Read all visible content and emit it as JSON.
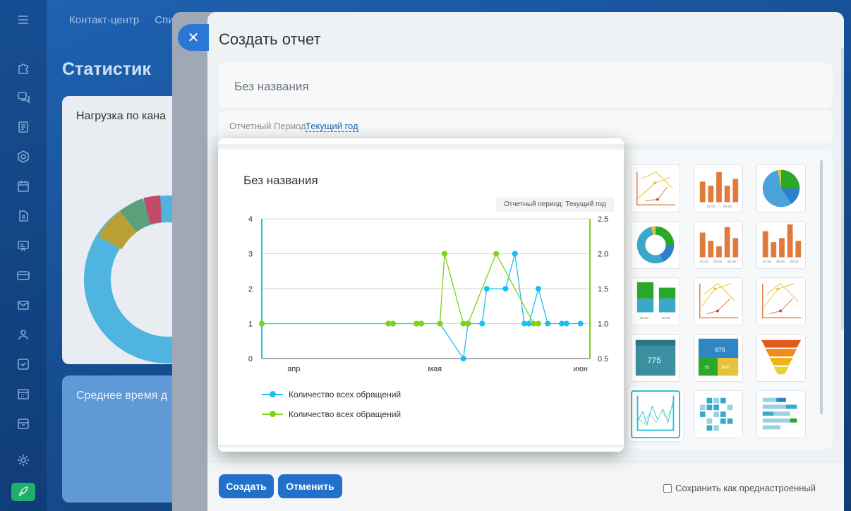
{
  "background": {
    "topnav": [
      "Контакт-центр",
      "Спи"
    ],
    "title": "Статистик",
    "card1_title": "Нагрузка по кана",
    "card2_title": "Среднее время д",
    "rail_icons": [
      "menu-icon",
      "puzzle-icon",
      "chat-icon",
      "document-icon",
      "hexagon-icon",
      "calendar-icon",
      "file-icon",
      "presentation-icon",
      "card-icon",
      "mail-icon",
      "users-icon",
      "checkbox-icon",
      "calendar-grid-icon",
      "archive-icon",
      "gear-icon",
      "rocket-icon"
    ]
  },
  "dialog": {
    "title": "Создать отчет",
    "name_value": "Без названия",
    "period_label": "Отчетный Период:",
    "period_value": "Текущий год",
    "create_label": "Создать",
    "cancel_label": "Отменить",
    "save_preset_label": "Сохранить как преднастроенный"
  },
  "gallery": {
    "thumbs": [
      {
        "kind": "line-multi"
      },
      {
        "kind": "bar",
        "labels": [
          "01.00",
          "00.00"
        ]
      },
      {
        "kind": "pie"
      },
      {
        "kind": "donut"
      },
      {
        "kind": "bar",
        "labels": [
          "01.00",
          "00.00",
          "00.00"
        ]
      },
      {
        "kind": "bar",
        "labels": [
          "01.00",
          "00.00",
          "00.00"
        ]
      },
      {
        "kind": "stacked-bar",
        "labels": [
          "01.00",
          "00.00"
        ]
      },
      {
        "kind": "line-multi"
      },
      {
        "kind": "line-multi"
      },
      {
        "kind": "number",
        "value": "775"
      },
      {
        "kind": "multi-number",
        "values": [
          "975",
          "75",
          "900"
        ]
      },
      {
        "kind": "funnel"
      },
      {
        "kind": "line-graph",
        "selected": true
      },
      {
        "kind": "heatmap"
      },
      {
        "kind": "bar-h"
      }
    ]
  },
  "preview": {
    "title": "Без названия",
    "period_badge": "Отчетный период: Текущий год",
    "chart_data": {
      "type": "line",
      "x_ticks": [
        "апр",
        "мая",
        "июн"
      ],
      "y_left": {
        "ticks": [
          0,
          1,
          2,
          3,
          4
        ],
        "range": [
          0,
          4
        ]
      },
      "y_right": {
        "ticks": [
          "0.5",
          "1.0",
          "1.5",
          "2.0",
          "2.5"
        ],
        "range": [
          0.5,
          2.5
        ]
      },
      "series": [
        {
          "name": "Количество всех обращений",
          "color": "#18c0f0",
          "axis": "left",
          "x": [
            "03-27",
            "04-23",
            "04-24",
            "04-29",
            "04-30",
            "05-04",
            "05-09",
            "05-10",
            "05-13",
            "05-14",
            "05-18",
            "05-20",
            "05-20",
            "05-22",
            "05-23",
            "05-25",
            "05-27",
            "05-30",
            "05-31",
            "06-03"
          ],
          "values": [
            1,
            1,
            1,
            1,
            1,
            1,
            0,
            1,
            1,
            2,
            2,
            3,
            3,
            1,
            1,
            2,
            1,
            1,
            1,
            1
          ]
        },
        {
          "name": "Количество всех обращений",
          "color": "#7dd314",
          "axis": "right",
          "x": [
            "03-27",
            "04-23",
            "04-24",
            "04-29",
            "04-30",
            "05-04",
            "05-05",
            "05-09",
            "05-10",
            "05-16",
            "05-24",
            "05-25"
          ],
          "values": [
            1.0,
            1.0,
            1.0,
            1.0,
            1.0,
            1.0,
            2.0,
            1.0,
            1.0,
            2.0,
            1.0,
            1.0
          ]
        }
      ]
    }
  }
}
